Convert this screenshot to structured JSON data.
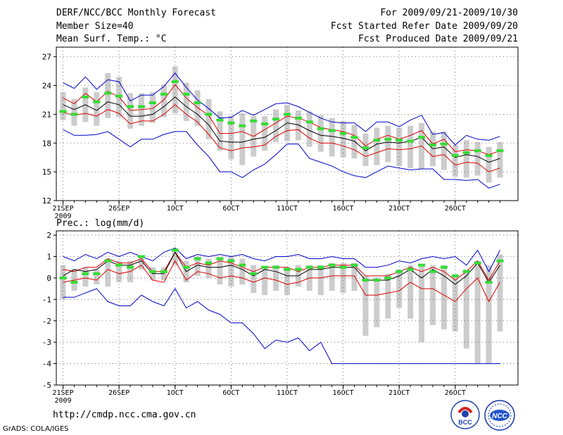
{
  "header": {
    "title": "DERF/NCC/BCC Monthly Forecast",
    "member_size": "Member Size=40",
    "variable": "Mean Surf. Temp.: °C",
    "period": "For 2009/09/21-2009/10/30",
    "start_date": "Fcst Started Refer Date 2009/09/20",
    "produced_date": "Fcst Produced Date 2009/09/21"
  },
  "colors": {
    "ensemble_bar": "#cccccc",
    "obs_marker": "#33dd33",
    "spread_envelope": "#0000cc",
    "percentile_band": "#dd0000",
    "ensemble_mean": "#000000"
  },
  "footer": {
    "url": "http://cmdp.ncc.cma.gov.cn",
    "credit": "GrADS: COLA/IGES",
    "logo_left": "BCC",
    "logo_right": "NCC"
  },
  "chart_data": [
    {
      "type": "line",
      "title": "Mean Surf. Temp.: °C",
      "xlabel": "",
      "ylabel": "",
      "ylim": [
        12,
        28
      ],
      "yticks": [
        12,
        15,
        18,
        21,
        24,
        27
      ],
      "xticks": [
        {
          "day": 1,
          "label": "21SEP",
          "sublabel": "2009"
        },
        {
          "day": 6,
          "label": "26SEP"
        },
        {
          "day": 11,
          "label": "1OCT"
        },
        {
          "day": 16,
          "label": "6OCT"
        },
        {
          "day": 21,
          "label": "11OCT"
        },
        {
          "day": 26,
          "label": "16OCT"
        },
        {
          "day": 31,
          "label": "21OCT"
        },
        {
          "day": 36,
          "label": "26OCT"
        }
      ],
      "grid": true,
      "x": [
        1,
        2,
        3,
        4,
        5,
        6,
        7,
        8,
        9,
        10,
        11,
        12,
        13,
        14,
        15,
        16,
        17,
        18,
        19,
        20,
        21,
        22,
        23,
        24,
        25,
        26,
        27,
        28,
        29,
        30,
        31,
        32,
        33,
        34,
        35,
        36,
        37,
        38,
        39,
        40
      ],
      "series": [
        {
          "name": "Ensemble max",
          "values": [
            24.3,
            23.7,
            24.9,
            23.6,
            24.6,
            24.4,
            22.4,
            23.0,
            23.0,
            23.9,
            25.3,
            23.8,
            22.5,
            21.6,
            20.6,
            20.7,
            21.4,
            20.9,
            21.5,
            22.1,
            22.2,
            21.8,
            21.2,
            20.6,
            20.2,
            20.1,
            20.1,
            19.2,
            20.2,
            20.2,
            19.7,
            20.4,
            20.9,
            18.9,
            19.1,
            17.8,
            18.8,
            18.4,
            18.3,
            18.7
          ]
        },
        {
          "name": "Upper percentile",
          "values": [
            22.7,
            22.1,
            23.2,
            22.3,
            23.4,
            22.8,
            21.4,
            21.5,
            21.6,
            22.5,
            24.1,
            22.7,
            21.7,
            20.9,
            19.0,
            19.0,
            19.2,
            18.7,
            19.4,
            20.1,
            20.8,
            20.6,
            20.2,
            19.6,
            19.4,
            19.2,
            18.8,
            17.7,
            18.4,
            18.8,
            18.4,
            18.8,
            19.3,
            17.9,
            18.4,
            17.1,
            17.3,
            17.2,
            16.8,
            17.2
          ]
        },
        {
          "name": "Ensemble mean",
          "values": [
            22.0,
            21.5,
            22.0,
            21.4,
            22.3,
            22.0,
            20.8,
            20.8,
            21.0,
            21.8,
            22.8,
            21.8,
            21.0,
            19.9,
            18.2,
            18.1,
            18.1,
            18.4,
            18.6,
            19.3,
            20.1,
            19.9,
            19.3,
            18.8,
            18.7,
            18.5,
            18.2,
            17.2,
            17.9,
            18.1,
            18.0,
            18.2,
            18.6,
            17.4,
            17.6,
            16.5,
            16.8,
            16.6,
            16.0,
            16.4
          ]
        },
        {
          "name": "Lower percentile",
          "values": [
            21.2,
            20.9,
            21.1,
            20.8,
            21.5,
            21.1,
            20.0,
            20.3,
            20.3,
            21.0,
            22.0,
            21.0,
            20.2,
            18.9,
            17.5,
            17.2,
            17.5,
            17.6,
            17.8,
            18.7,
            19.3,
            19.4,
            18.5,
            18.0,
            18.0,
            17.7,
            17.3,
            16.6,
            17.0,
            17.4,
            17.3,
            17.4,
            17.7,
            16.6,
            16.8,
            15.7,
            16.0,
            15.9,
            15.0,
            15.4
          ]
        },
        {
          "name": "Ensemble min",
          "values": [
            19.4,
            18.8,
            18.8,
            18.9,
            19.2,
            18.4,
            17.6,
            18.4,
            18.4,
            18.9,
            19.2,
            19.2,
            17.8,
            16.6,
            15.0,
            15.0,
            14.4,
            15.2,
            15.8,
            16.8,
            17.9,
            17.9,
            16.4,
            16.0,
            15.6,
            15.0,
            14.6,
            14.4,
            15.0,
            15.6,
            15.4,
            15.2,
            15.3,
            15.3,
            14.2,
            14.2,
            14.1,
            14.2,
            13.3,
            13.7
          ]
        }
      ],
      "obs_markers": [
        21.3,
        21.0,
        22.8,
        22.3,
        23.2,
        22.9,
        21.8,
        21.8,
        22.2,
        23.1,
        24.4,
        23.1,
        22.2,
        21.0,
        20.4,
        20.1,
        19.8,
        20.3,
        20.0,
        20.5,
        21.0,
        20.6,
        20.2,
        19.5,
        19.3,
        19.0,
        18.6,
        17.5,
        18.3,
        18.4,
        18.3,
        18.2,
        18.6,
        17.8,
        17.9,
        16.7,
        17.0,
        17.2,
        16.7,
        17.2
      ],
      "ensemble_bars": [
        [
          20.4,
          23.3
        ],
        [
          19.8,
          22.6
        ],
        [
          20.2,
          23.8
        ],
        [
          19.8,
          23.3
        ],
        [
          20.6,
          25.3
        ],
        [
          20.7,
          24.9
        ],
        [
          19.5,
          23.2
        ],
        [
          19.8,
          23.2
        ],
        [
          20.1,
          23.3
        ],
        [
          20.7,
          24.1
        ],
        [
          21.1,
          26.0
        ],
        [
          20.3,
          24.3
        ],
        [
          19.8,
          23.5
        ],
        [
          18.4,
          22.6
        ],
        [
          17.2,
          21.3
        ],
        [
          16.3,
          20.8
        ],
        [
          15.7,
          21.1
        ],
        [
          16.6,
          20.8
        ],
        [
          17.2,
          20.8
        ],
        [
          18.1,
          21.5
        ],
        [
          18.2,
          22.0
        ],
        [
          18.3,
          21.4
        ],
        [
          17.6,
          21.3
        ],
        [
          17.1,
          20.9
        ],
        [
          16.6,
          20.6
        ],
        [
          16.5,
          20.3
        ],
        [
          16.4,
          19.9
        ],
        [
          15.6,
          19.0
        ],
        [
          15.7,
          19.6
        ],
        [
          16.0,
          19.8
        ],
        [
          15.6,
          19.6
        ],
        [
          15.4,
          19.8
        ],
        [
          15.3,
          20.1
        ],
        [
          15.6,
          19.2
        ],
        [
          15.2,
          19.2
        ],
        [
          14.5,
          17.8
        ],
        [
          14.4,
          18.3
        ],
        [
          14.6,
          18.1
        ],
        [
          13.9,
          17.6
        ],
        [
          14.4,
          18.1
        ]
      ]
    },
    {
      "type": "line",
      "title": "Prec.: log(mm/d)",
      "xlabel": "",
      "ylabel": "",
      "ylim": [
        -5,
        2.2
      ],
      "yticks": [
        -5,
        -4,
        -3,
        -2,
        -1,
        0,
        1,
        2
      ],
      "xticks": [
        {
          "day": 1,
          "label": "21SEP",
          "sublabel": "2009"
        },
        {
          "day": 6,
          "label": "26SEP"
        },
        {
          "day": 11,
          "label": "1OCT"
        },
        {
          "day": 16,
          "label": "6OCT"
        },
        {
          "day": 21,
          "label": "11OCT"
        },
        {
          "day": 26,
          "label": "16OCT"
        },
        {
          "day": 31,
          "label": "21OCT"
        },
        {
          "day": 36,
          "label": "26OCT"
        }
      ],
      "grid": true,
      "x": [
        1,
        2,
        3,
        4,
        5,
        6,
        7,
        8,
        9,
        10,
        11,
        12,
        13,
        14,
        15,
        16,
        17,
        18,
        19,
        20,
        21,
        22,
        23,
        24,
        25,
        26,
        27,
        28,
        29,
        30,
        31,
        32,
        33,
        34,
        35,
        36,
        37,
        38,
        39,
        40
      ],
      "series": [
        {
          "name": "Ensemble max",
          "values": [
            1.0,
            0.8,
            1.1,
            0.9,
            1.2,
            1.0,
            1.2,
            1.0,
            0.8,
            1.2,
            1.4,
            0.9,
            1.1,
            1.0,
            1.1,
            1.0,
            1.1,
            0.9,
            0.8,
            1.0,
            1.0,
            1.1,
            0.9,
            0.9,
            1.0,
            0.9,
            0.9,
            0.5,
            0.5,
            0.6,
            0.8,
            0.7,
            0.9,
            1.0,
            0.9,
            1.0,
            0.6,
            1.3,
            0.3,
            1.3
          ]
        },
        {
          "name": "Upper percentile",
          "values": [
            0.4,
            0.3,
            0.5,
            0.5,
            0.9,
            0.7,
            0.7,
            0.9,
            0.3,
            0.3,
            1.2,
            0.5,
            0.7,
            0.6,
            0.8,
            0.7,
            0.5,
            0.3,
            0.5,
            0.5,
            0.5,
            0.3,
            0.5,
            0.5,
            0.6,
            0.6,
            0.6,
            0.1,
            0.1,
            0.1,
            0.3,
            0.5,
            0.3,
            0.5,
            0.3,
            -0.1,
            0.3,
            0.8,
            -0.1,
            0.8
          ]
        },
        {
          "name": "Ensemble mean",
          "values": [
            0.1,
            0.4,
            0.3,
            0.4,
            0.8,
            0.6,
            0.6,
            0.8,
            0.2,
            0.2,
            1.2,
            0.3,
            0.6,
            0.5,
            0.5,
            0.6,
            0.4,
            0.1,
            0.4,
            0.3,
            0.1,
            0.1,
            0.4,
            0.4,
            0.5,
            0.5,
            0.5,
            -0.1,
            -0.1,
            -0.1,
            0.1,
            0.4,
            0.0,
            0.4,
            0.1,
            -0.3,
            0.1,
            0.7,
            -0.2,
            0.6
          ]
        },
        {
          "name": "Lower percentile",
          "values": [
            -0.2,
            -0.1,
            0.0,
            -0.1,
            0.4,
            0.2,
            0.3,
            0.6,
            -0.1,
            -0.2,
            0.8,
            -0.1,
            0.3,
            0.2,
            0.0,
            0.1,
            0.0,
            -0.2,
            0.0,
            -0.1,
            -0.3,
            -0.2,
            0.0,
            0.0,
            0.1,
            0.1,
            0.1,
            -0.8,
            -0.8,
            -0.7,
            -0.6,
            -0.2,
            -0.5,
            -0.5,
            -0.8,
            -1.1,
            -0.5,
            0.0,
            -1.1,
            -0.2
          ]
        },
        {
          "name": "Ensemble min",
          "values": [
            -0.9,
            -0.9,
            -0.7,
            -0.5,
            -1.1,
            -1.3,
            -1.3,
            -0.8,
            -1.1,
            -1.3,
            -0.5,
            -1.4,
            -1.1,
            -1.5,
            -1.7,
            -2.1,
            -2.1,
            -2.6,
            -3.3,
            -2.9,
            -3.0,
            -2.8,
            -3.4,
            -3.0,
            -4.0,
            -4.0,
            -4.0,
            -4.0,
            -4.0,
            -4.0,
            -4.0,
            -4.0,
            -4.0,
            -4.0,
            -4.0,
            -4.0,
            -4.0,
            -4.0,
            -4.0,
            -4.0
          ]
        }
      ],
      "obs_markers": [
        0.0,
        -0.2,
        0.2,
        0.2,
        0.8,
        0.6,
        0.5,
        1.0,
        0.3,
        0.3,
        1.3,
        0.5,
        0.9,
        0.7,
        0.9,
        0.8,
        0.6,
        0.2,
        0.5,
        0.5,
        0.4,
        0.4,
        0.5,
        0.5,
        0.6,
        0.5,
        0.6,
        -0.1,
        -0.1,
        0.0,
        0.3,
        0.4,
        0.6,
        0.3,
        0.5,
        0.1,
        0.3,
        0.7,
        -0.2,
        0.8
      ],
      "ensemble_bars": [
        [
          -1.0,
          0.6
        ],
        [
          -0.6,
          0.4
        ],
        [
          -0.4,
          0.5
        ],
        [
          -0.3,
          0.4
        ],
        [
          -0.4,
          0.9
        ],
        [
          -0.2,
          0.8
        ],
        [
          -0.2,
          0.8
        ],
        [
          0.4,
          1.0
        ],
        [
          -0.1,
          0.5
        ],
        [
          -0.1,
          0.5
        ],
        [
          0.6,
          1.4
        ],
        [
          -0.2,
          0.8
        ],
        [
          0.1,
          1.0
        ],
        [
          0.0,
          0.9
        ],
        [
          -0.3,
          0.9
        ],
        [
          -0.4,
          1.0
        ],
        [
          -0.3,
          0.9
        ],
        [
          -0.7,
          0.6
        ],
        [
          -0.8,
          0.5
        ],
        [
          -0.6,
          0.6
        ],
        [
          -0.8,
          0.5
        ],
        [
          -0.4,
          0.6
        ],
        [
          -0.6,
          0.6
        ],
        [
          -0.8,
          0.6
        ],
        [
          -0.6,
          0.7
        ],
        [
          -0.7,
          0.7
        ],
        [
          -0.6,
          0.7
        ],
        [
          -2.7,
          0.1
        ],
        [
          -2.3,
          0.0
        ],
        [
          -1.9,
          0.2
        ],
        [
          -1.4,
          0.4
        ],
        [
          -1.9,
          0.6
        ],
        [
          -3.0,
          0.6
        ],
        [
          -2.2,
          0.6
        ],
        [
          -2.4,
          0.6
        ],
        [
          -2.5,
          0.1
        ],
        [
          -3.3,
          0.4
        ],
        [
          -4.0,
          0.8
        ],
        [
          -4.0,
          0.6
        ],
        [
          -2.5,
          1.1
        ]
      ]
    }
  ]
}
